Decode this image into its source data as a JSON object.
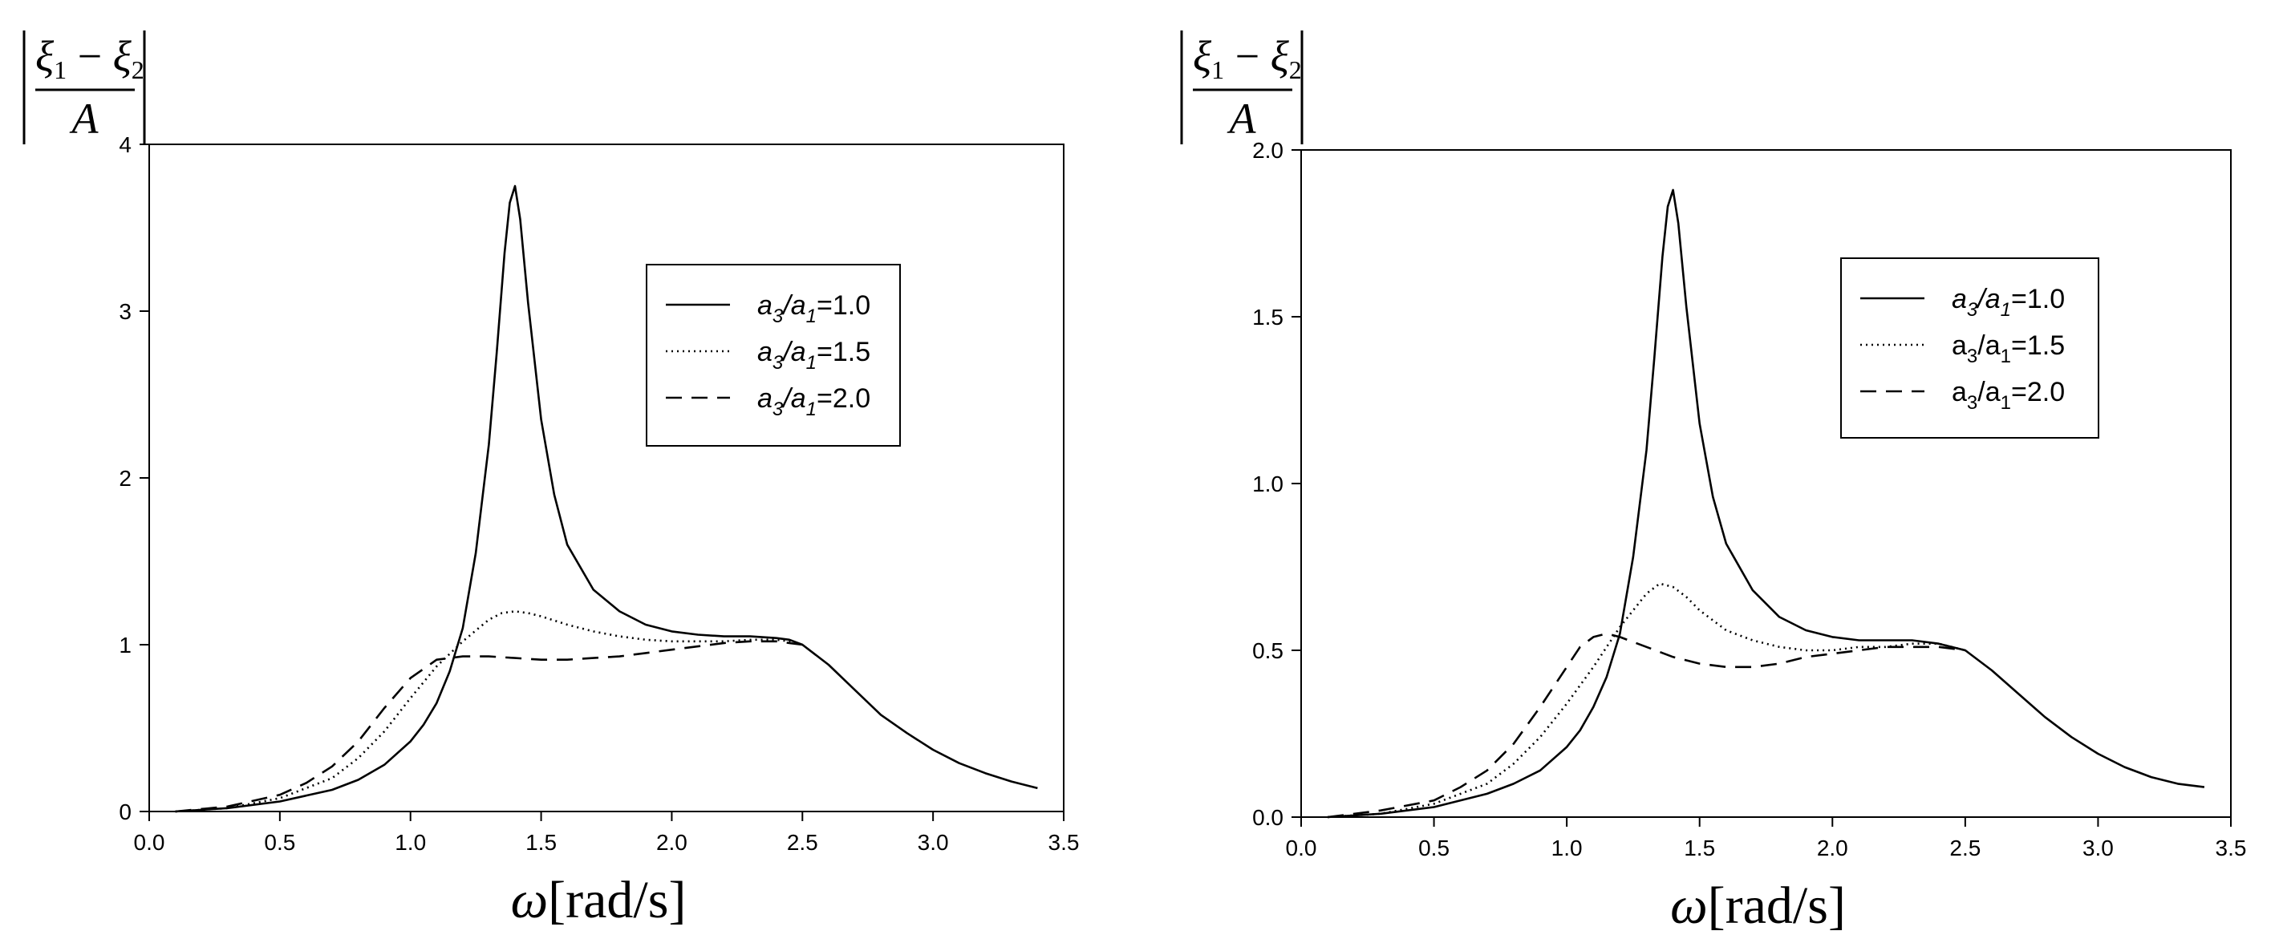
{
  "chart_data": [
    {
      "type": "line",
      "ylabel": {
        "num_a": "ξ",
        "num_a_sub": "1",
        "minus": "−",
        "num_b": "ξ",
        "num_b_sub": "2",
        "den": "A"
      },
      "xlabel": {
        "sym": "ω",
        "unit": "[rad/s]"
      },
      "xlim": [
        0.0,
        3.5
      ],
      "ylim": [
        0,
        4
      ],
      "xticks": [
        "0.0",
        "0.5",
        "1.0",
        "1.5",
        "2.0",
        "2.5",
        "3.0",
        "3.5"
      ],
      "yticks": [
        "0",
        "1",
        "2",
        "3",
        "4"
      ],
      "legend_position": "top-right",
      "series": [
        {
          "name": "a3/a1=1.0",
          "label_var_a": "a",
          "label_sub_a": "3",
          "label_slash": "/",
          "label_var_b": "a",
          "label_sub_b": "1",
          "label_value": "=1.0",
          "dash": "solid",
          "x": [
            0.1,
            0.3,
            0.5,
            0.7,
            0.8,
            0.9,
            1.0,
            1.05,
            1.1,
            1.15,
            1.2,
            1.25,
            1.3,
            1.33,
            1.36,
            1.38,
            1.4,
            1.42,
            1.45,
            1.5,
            1.55,
            1.6,
            1.7,
            1.8,
            1.9,
            2.0,
            2.1,
            2.2,
            2.3,
            2.4,
            2.45,
            2.5,
            2.6,
            2.7,
            2.8,
            2.9,
            3.0,
            3.1,
            3.2,
            3.3,
            3.4
          ],
          "y": [
            0.0,
            0.02,
            0.06,
            0.13,
            0.19,
            0.28,
            0.42,
            0.52,
            0.65,
            0.84,
            1.1,
            1.55,
            2.2,
            2.75,
            3.35,
            3.65,
            3.75,
            3.55,
            3.05,
            2.35,
            1.9,
            1.6,
            1.33,
            1.2,
            1.12,
            1.08,
            1.06,
            1.05,
            1.05,
            1.04,
            1.03,
            1.0,
            0.88,
            0.73,
            0.58,
            0.47,
            0.37,
            0.29,
            0.23,
            0.18,
            0.14
          ]
        },
        {
          "name": "a3/a1=1.5",
          "label_var_a": "a",
          "label_sub_a": "3",
          "label_slash": "/",
          "label_var_b": "a",
          "label_sub_b": "1",
          "label_value": "=1.5",
          "dash": "dotted",
          "x": [
            0.1,
            0.3,
            0.5,
            0.7,
            0.8,
            0.9,
            1.0,
            1.1,
            1.2,
            1.3,
            1.35,
            1.4,
            1.45,
            1.5,
            1.6,
            1.7,
            1.8,
            1.9,
            2.0,
            2.1,
            2.2,
            2.3,
            2.4,
            2.45,
            2.5
          ],
          "y": [
            0.0,
            0.02,
            0.08,
            0.2,
            0.32,
            0.48,
            0.68,
            0.87,
            1.02,
            1.15,
            1.19,
            1.2,
            1.19,
            1.17,
            1.12,
            1.08,
            1.05,
            1.03,
            1.02,
            1.02,
            1.02,
            1.03,
            1.03,
            1.02,
            1.0
          ]
        },
        {
          "name": "a3/a1=2.0",
          "label_var_a": "a",
          "label_sub_a": "3",
          "label_slash": "/",
          "label_var_b": "a",
          "label_sub_b": "1",
          "label_value": "=2.0",
          "dash": "dashed",
          "x": [
            0.1,
            0.3,
            0.5,
            0.6,
            0.7,
            0.8,
            0.9,
            1.0,
            1.1,
            1.2,
            1.3,
            1.4,
            1.5,
            1.6,
            1.7,
            1.8,
            1.9,
            2.0,
            2.1,
            2.2,
            2.3,
            2.4,
            2.45,
            2.5
          ],
          "y": [
            0.0,
            0.03,
            0.1,
            0.17,
            0.27,
            0.42,
            0.62,
            0.8,
            0.91,
            0.93,
            0.93,
            0.92,
            0.91,
            0.91,
            0.92,
            0.93,
            0.95,
            0.97,
            0.99,
            1.01,
            1.02,
            1.02,
            1.01,
            1.0
          ]
        }
      ]
    },
    {
      "type": "line",
      "ylabel": {
        "num_a": "ξ",
        "num_a_sub": "1",
        "minus": "−",
        "num_b": "ξ",
        "num_b_sub": "2",
        "den": "A"
      },
      "xlabel": {
        "sym": "ω",
        "unit": "[rad/s]"
      },
      "xlim": [
        0.0,
        3.5
      ],
      "ylim": [
        0.0,
        2.0
      ],
      "xticks": [
        "0.0",
        "0.5",
        "1.0",
        "1.5",
        "2.0",
        "2.5",
        "3.0",
        "3.5"
      ],
      "yticks": [
        "0.0",
        "0.5",
        "1.0",
        "1.5",
        "2.0"
      ],
      "legend_position": "top-right",
      "series": [
        {
          "name": "a3/a1=1.0",
          "label_var_a": "a",
          "label_sub_a": "3",
          "label_slash": "/",
          "label_var_b": "a",
          "label_sub_b": "1",
          "label_value": "=1.0",
          "dash": "solid",
          "x": [
            0.1,
            0.3,
            0.5,
            0.7,
            0.8,
            0.9,
            1.0,
            1.05,
            1.1,
            1.15,
            1.2,
            1.25,
            1.3,
            1.33,
            1.36,
            1.38,
            1.4,
            1.42,
            1.45,
            1.5,
            1.55,
            1.6,
            1.7,
            1.8,
            1.9,
            2.0,
            2.1,
            2.2,
            2.3,
            2.4,
            2.5,
            2.6,
            2.7,
            2.8,
            2.9,
            3.0,
            3.1,
            3.2,
            3.3,
            3.4
          ],
          "y": [
            0.0,
            0.01,
            0.03,
            0.07,
            0.1,
            0.14,
            0.21,
            0.26,
            0.33,
            0.42,
            0.55,
            0.78,
            1.1,
            1.38,
            1.68,
            1.83,
            1.88,
            1.78,
            1.53,
            1.18,
            0.96,
            0.82,
            0.68,
            0.6,
            0.56,
            0.54,
            0.53,
            0.53,
            0.53,
            0.52,
            0.5,
            0.44,
            0.37,
            0.3,
            0.24,
            0.19,
            0.15,
            0.12,
            0.1,
            0.09
          ]
        },
        {
          "name": "a3/a1=1.5",
          "label_var_a": "a",
          "label_sub_a": "3",
          "label_slash": "/",
          "label_var_b": "a",
          "label_sub_b": "1",
          "label_value": "=1.5",
          "dash": "dotted",
          "x": [
            0.1,
            0.3,
            0.5,
            0.7,
            0.8,
            0.9,
            1.0,
            1.1,
            1.2,
            1.3,
            1.35,
            1.4,
            1.45,
            1.5,
            1.6,
            1.7,
            1.8,
            1.9,
            2.0,
            2.1,
            2.2,
            2.3,
            2.4,
            2.5
          ],
          "y": [
            0.0,
            0.01,
            0.04,
            0.1,
            0.16,
            0.24,
            0.34,
            0.45,
            0.57,
            0.67,
            0.7,
            0.69,
            0.66,
            0.62,
            0.56,
            0.53,
            0.51,
            0.5,
            0.5,
            0.51,
            0.51,
            0.52,
            0.52,
            0.5
          ]
        },
        {
          "name": "a3/a1=2.0",
          "label_var_a": "a",
          "label_sub_a": "3",
          "label_slash": "/",
          "label_var_b": "a",
          "label_sub_b": "1",
          "label_value": "=2.0",
          "dash": "dashed",
          "x": [
            0.1,
            0.3,
            0.5,
            0.6,
            0.7,
            0.8,
            0.9,
            1.0,
            1.05,
            1.1,
            1.15,
            1.2,
            1.3,
            1.4,
            1.5,
            1.6,
            1.7,
            1.8,
            1.9,
            2.0,
            2.1,
            2.2,
            2.3,
            2.4,
            2.5
          ],
          "y": [
            0.0,
            0.02,
            0.05,
            0.09,
            0.14,
            0.22,
            0.33,
            0.45,
            0.51,
            0.54,
            0.55,
            0.54,
            0.51,
            0.48,
            0.46,
            0.45,
            0.45,
            0.46,
            0.48,
            0.49,
            0.5,
            0.51,
            0.51,
            0.51,
            0.5
          ]
        }
      ]
    }
  ]
}
